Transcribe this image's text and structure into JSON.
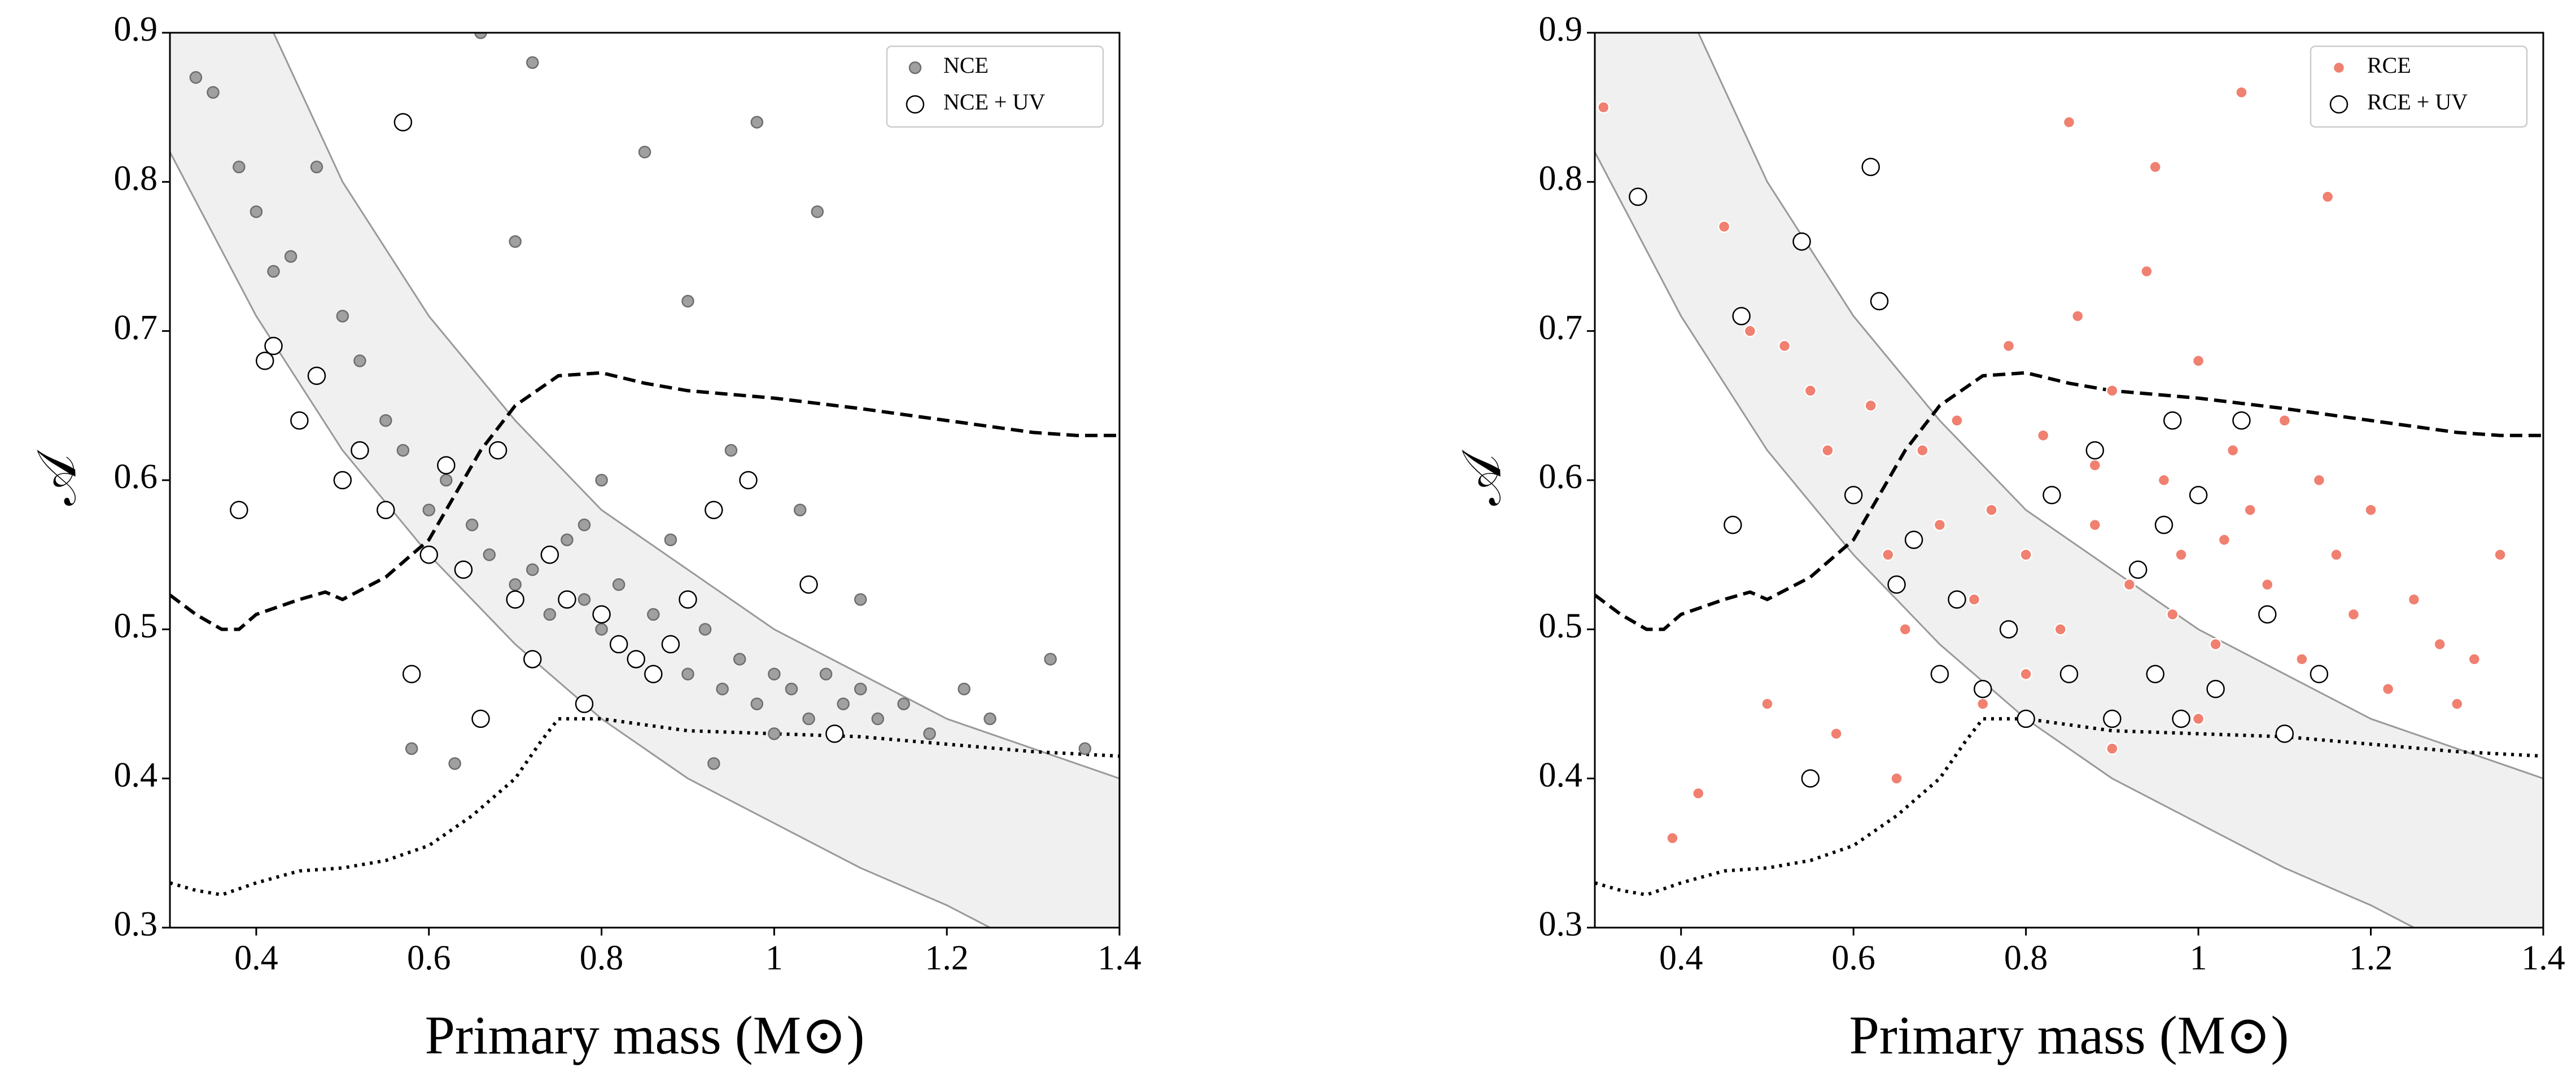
{
  "chart_data": [
    {
      "type": "scatter",
      "xlabel": "Primary mass (M⊙)",
      "ylabel": "𝒜",
      "xlim": [
        0.3,
        1.4
      ],
      "ylim": [
        0.3,
        0.9
      ],
      "xticks": [
        0.4,
        0.6,
        0.8,
        1.0,
        1.2,
        1.4
      ],
      "yticks": [
        0.3,
        0.4,
        0.5,
        0.6,
        0.7,
        0.8,
        0.9
      ],
      "legend": "upper right",
      "band": {
        "color": "#f0f0f0",
        "edgecolor": "#999999",
        "x_upper": [
          0.42,
          0.5,
          0.6,
          0.7,
          0.8,
          0.9,
          1.0,
          1.1,
          1.2,
          1.3,
          1.4
        ],
        "upper": [
          0.9,
          0.8,
          0.71,
          0.64,
          0.58,
          0.54,
          0.5,
          0.47,
          0.44,
          0.42,
          0.4
        ],
        "x_lower": [
          0.3,
          0.4,
          0.5,
          0.6,
          0.7,
          0.8,
          0.9,
          1.0,
          1.1,
          1.2,
          1.25
        ],
        "lower": [
          0.82,
          0.71,
          0.62,
          0.55,
          0.49,
          0.44,
          0.4,
          0.37,
          0.34,
          0.315,
          0.3
        ]
      },
      "lines": [
        {
          "style": "dashed",
          "color": "#000000",
          "x": [
            0.3,
            0.33,
            0.36,
            0.38,
            0.4,
            0.45,
            0.48,
            0.5,
            0.55,
            0.6,
            0.63,
            0.66,
            0.7,
            0.75,
            0.8,
            0.85,
            0.9,
            1.0,
            1.1,
            1.2,
            1.3,
            1.35,
            1.4
          ],
          "values": [
            0.523,
            0.51,
            0.5,
            0.5,
            0.51,
            0.52,
            0.525,
            0.52,
            0.535,
            0.56,
            0.59,
            0.62,
            0.65,
            0.67,
            0.672,
            0.665,
            0.66,
            0.655,
            0.648,
            0.64,
            0.632,
            0.63,
            0.63
          ]
        },
        {
          "style": "dotted",
          "color": "#000000",
          "x": [
            0.3,
            0.33,
            0.36,
            0.4,
            0.45,
            0.5,
            0.55,
            0.6,
            0.65,
            0.7,
            0.73,
            0.75,
            0.8,
            0.9,
            1.0,
            1.1,
            1.2,
            1.3,
            1.4
          ],
          "values": [
            0.33,
            0.325,
            0.322,
            0.33,
            0.338,
            0.34,
            0.345,
            0.355,
            0.375,
            0.4,
            0.425,
            0.44,
            0.44,
            0.432,
            0.43,
            0.428,
            0.423,
            0.418,
            0.415
          ]
        }
      ],
      "series": [
        {
          "name": "NCE",
          "color": "#a0a0a0",
          "edgecolor": "#6e6e6e",
          "x": [
            0.33,
            0.35,
            0.38,
            0.4,
            0.42,
            0.44,
            0.47,
            0.5,
            0.52,
            0.55,
            0.57,
            0.6,
            0.62,
            0.65,
            0.67,
            0.7,
            0.72,
            0.74,
            0.76,
            0.78,
            0.8,
            0.82,
            0.84,
            0.86,
            0.88,
            0.9,
            0.92,
            0.94,
            0.96,
            0.98,
            1.0,
            1.02,
            1.04,
            1.06,
            1.08,
            1.1,
            1.12,
            1.15,
            1.18,
            1.22,
            1.25,
            1.32,
            1.36,
            0.72,
            0.85,
            0.98,
            1.05,
            0.9,
            0.8,
            0.95,
            1.03,
            0.88,
            0.78,
            1.1,
            0.7,
            0.66,
            0.58,
            0.63,
            0.93,
            1.0
          ],
          "values": [
            0.87,
            0.86,
            0.81,
            0.78,
            0.74,
            0.75,
            0.81,
            0.71,
            0.68,
            0.64,
            0.62,
            0.58,
            0.6,
            0.57,
            0.55,
            0.53,
            0.54,
            0.51,
            0.56,
            0.52,
            0.5,
            0.53,
            0.48,
            0.51,
            0.49,
            0.47,
            0.5,
            0.46,
            0.48,
            0.45,
            0.47,
            0.46,
            0.44,
            0.47,
            0.45,
            0.46,
            0.44,
            0.45,
            0.43,
            0.46,
            0.44,
            0.48,
            0.42,
            0.88,
            0.82,
            0.84,
            0.78,
            0.72,
            0.6,
            0.62,
            0.58,
            0.56,
            0.57,
            0.52,
            0.76,
            0.9,
            0.42,
            0.41,
            0.41,
            0.43
          ]
        },
        {
          "name": "NCE + UV",
          "color": "#ffffff",
          "edgecolor": "#000000",
          "x": [
            0.38,
            0.41,
            0.42,
            0.45,
            0.47,
            0.5,
            0.52,
            0.55,
            0.57,
            0.58,
            0.6,
            0.62,
            0.64,
            0.66,
            0.68,
            0.7,
            0.72,
            0.74,
            0.76,
            0.78,
            0.8,
            0.82,
            0.84,
            0.86,
            0.88,
            0.9,
            0.93,
            0.97,
            1.04,
            1.07
          ],
          "values": [
            0.58,
            0.68,
            0.69,
            0.64,
            0.67,
            0.6,
            0.62,
            0.58,
            0.84,
            0.47,
            0.55,
            0.61,
            0.54,
            0.44,
            0.62,
            0.52,
            0.48,
            0.55,
            0.52,
            0.45,
            0.51,
            0.49,
            0.48,
            0.47,
            0.49,
            0.52,
            0.58,
            0.6,
            0.53,
            0.43
          ]
        }
      ]
    },
    {
      "type": "scatter",
      "xlabel": "Primary mass (M⊙)",
      "ylabel": "𝒜",
      "xlim": [
        0.3,
        1.4
      ],
      "ylim": [
        0.3,
        0.9
      ],
      "xticks": [
        0.4,
        0.6,
        0.8,
        1.0,
        1.2,
        1.4
      ],
      "yticks": [
        0.3,
        0.4,
        0.5,
        0.6,
        0.7,
        0.8,
        0.9
      ],
      "legend": "upper right",
      "band": {
        "color": "#f0f0f0",
        "edgecolor": "#999999",
        "x_upper": [
          0.42,
          0.5,
          0.6,
          0.7,
          0.8,
          0.9,
          1.0,
          1.1,
          1.2,
          1.3,
          1.4
        ],
        "upper": [
          0.9,
          0.8,
          0.71,
          0.64,
          0.58,
          0.54,
          0.5,
          0.47,
          0.44,
          0.42,
          0.4
        ],
        "x_lower": [
          0.3,
          0.4,
          0.5,
          0.6,
          0.7,
          0.8,
          0.9,
          1.0,
          1.1,
          1.2,
          1.25
        ],
        "lower": [
          0.82,
          0.71,
          0.62,
          0.55,
          0.49,
          0.44,
          0.4,
          0.37,
          0.34,
          0.315,
          0.3
        ]
      },
      "lines": [
        {
          "style": "dashed",
          "color": "#000000",
          "x": [
            0.3,
            0.33,
            0.36,
            0.38,
            0.4,
            0.45,
            0.48,
            0.5,
            0.55,
            0.6,
            0.63,
            0.66,
            0.7,
            0.75,
            0.8,
            0.85,
            0.9,
            1.0,
            1.1,
            1.2,
            1.3,
            1.35,
            1.4
          ],
          "values": [
            0.523,
            0.51,
            0.5,
            0.5,
            0.51,
            0.52,
            0.525,
            0.52,
            0.535,
            0.56,
            0.59,
            0.62,
            0.65,
            0.67,
            0.672,
            0.665,
            0.66,
            0.655,
            0.648,
            0.64,
            0.632,
            0.63,
            0.63
          ]
        },
        {
          "style": "dotted",
          "color": "#000000",
          "x": [
            0.3,
            0.33,
            0.36,
            0.4,
            0.45,
            0.5,
            0.55,
            0.6,
            0.65,
            0.7,
            0.73,
            0.75,
            0.8,
            0.9,
            1.0,
            1.1,
            1.2,
            1.3,
            1.4
          ],
          "values": [
            0.33,
            0.325,
            0.322,
            0.33,
            0.338,
            0.34,
            0.345,
            0.355,
            0.375,
            0.4,
            0.425,
            0.44,
            0.44,
            0.432,
            0.43,
            0.428,
            0.423,
            0.418,
            0.415
          ]
        }
      ],
      "series": [
        {
          "name": "RCE",
          "color": "#f08070",
          "edgecolor": "#ffffff",
          "x": [
            0.31,
            0.39,
            0.42,
            0.45,
            0.48,
            0.5,
            0.52,
            0.55,
            0.57,
            0.58,
            0.6,
            0.62,
            0.64,
            0.66,
            0.68,
            0.7,
            0.72,
            0.74,
            0.76,
            0.78,
            0.8,
            0.82,
            0.84,
            0.86,
            0.88,
            0.9,
            0.92,
            0.94,
            0.96,
            0.98,
            1.0,
            1.02,
            1.04,
            1.06,
            1.08,
            1.1,
            1.12,
            1.14,
            1.16,
            1.18,
            1.2,
            1.22,
            1.25,
            1.28,
            1.3,
            1.32,
            1.35,
            0.85,
            0.95,
            1.05,
            0.75,
            0.9,
            1.0,
            1.15,
            0.65,
            0.8,
            1.1,
            0.97,
            0.88,
            1.03
          ],
          "values": [
            0.85,
            0.36,
            0.39,
            0.77,
            0.7,
            0.45,
            0.69,
            0.66,
            0.62,
            0.43,
            0.59,
            0.65,
            0.55,
            0.5,
            0.62,
            0.57,
            0.64,
            0.52,
            0.58,
            0.69,
            0.55,
            0.63,
            0.5,
            0.71,
            0.57,
            0.66,
            0.53,
            0.74,
            0.6,
            0.55,
            0.68,
            0.49,
            0.62,
            0.58,
            0.53,
            0.64,
            0.48,
            0.6,
            0.55,
            0.51,
            0.58,
            0.46,
            0.52,
            0.49,
            0.45,
            0.48,
            0.55,
            0.84,
            0.81,
            0.86,
            0.45,
            0.42,
            0.44,
            0.79,
            0.4,
            0.47,
            0.43,
            0.51,
            0.61,
            0.56
          ]
        },
        {
          "name": "RCE + UV",
          "color": "#ffffff",
          "edgecolor": "#000000",
          "x": [
            0.35,
            0.46,
            0.47,
            0.54,
            0.55,
            0.6,
            0.62,
            0.63,
            0.65,
            0.67,
            0.7,
            0.72,
            0.75,
            0.78,
            0.8,
            0.83,
            0.85,
            0.88,
            0.9,
            0.93,
            0.95,
            0.96,
            0.97,
            0.98,
            1.0,
            1.02,
            1.05,
            1.08,
            1.1,
            1.14
          ],
          "values": [
            0.79,
            0.57,
            0.71,
            0.76,
            0.4,
            0.59,
            0.81,
            0.72,
            0.53,
            0.56,
            0.47,
            0.52,
            0.46,
            0.5,
            0.44,
            0.59,
            0.47,
            0.62,
            0.44,
            0.54,
            0.47,
            0.57,
            0.64,
            0.44,
            0.59,
            0.46,
            0.64,
            0.51,
            0.43,
            0.47
          ]
        }
      ]
    }
  ]
}
